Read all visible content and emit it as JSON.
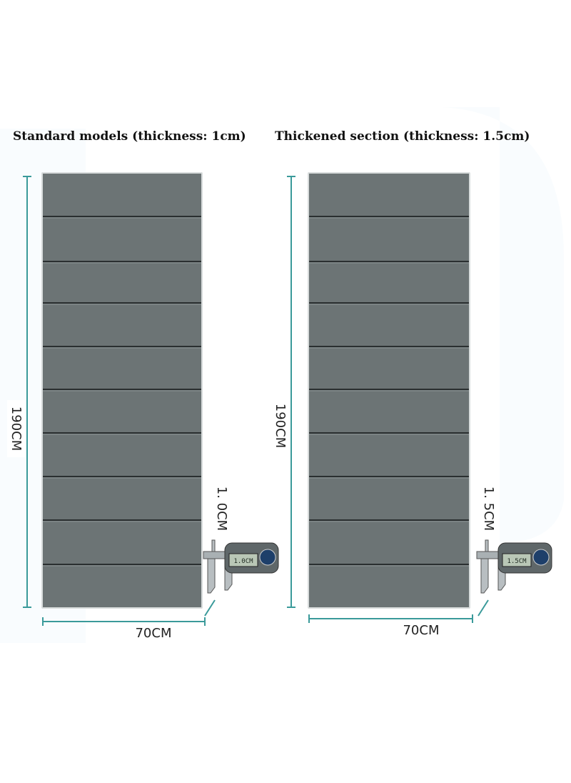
{
  "panels": [
    {
      "title": "Standard models (thickness: 1cm)",
      "height_label": "190CM",
      "width_label": "70CM",
      "thickness_label": "1. 0CM",
      "caliper_reading": "1.0CM"
    },
    {
      "title": "Thickened section (thickness: 1.5cm)",
      "height_label": "190CM",
      "width_label": "70CM",
      "thickness_label": "1. 5CM",
      "caliper_reading": "1.5CM"
    }
  ]
}
